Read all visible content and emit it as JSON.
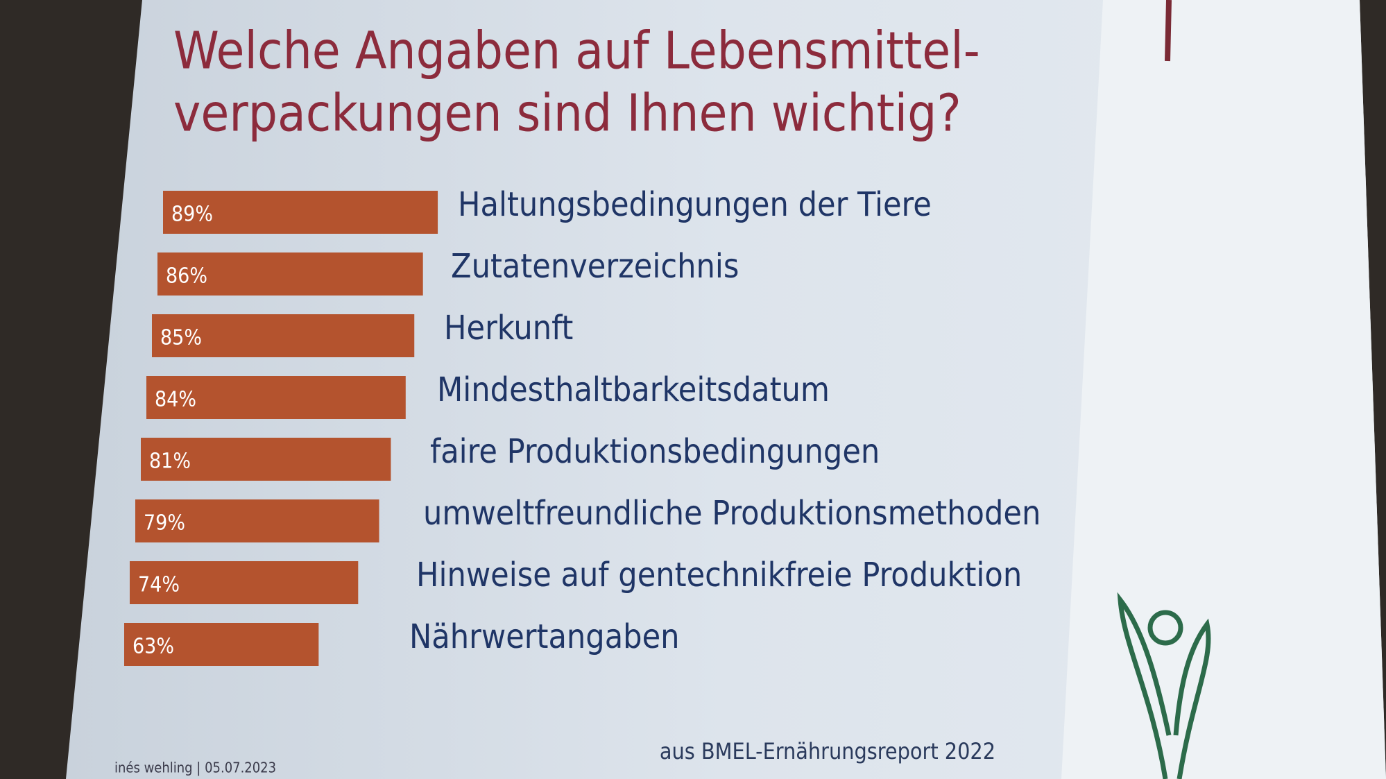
{
  "chart_data": {
    "type": "bar",
    "orientation": "horizontal",
    "title_lines": [
      "Welche Angaben auf Lebensmittel-",
      "verpackungen sind Ihnen wichtig?"
    ],
    "categories": [
      "Haltungsbedingungen der Tiere",
      "Zutatenverzeichnis",
      "Herkunft",
      "Mindesthaltbarkeitsdatum",
      "faire Produktionsbedingungen",
      "umweltfreundliche Produktionsmethoden",
      "Hinweise auf gentechnikfreie Produktion",
      "Nährwertangaben"
    ],
    "values": [
      89,
      86,
      85,
      84,
      81,
      79,
      74,
      63
    ],
    "value_labels": [
      "89%",
      "86%",
      "85%",
      "84%",
      "81%",
      "79%",
      "74%",
      "63%"
    ],
    "color": "#b4532e",
    "source": "aus BMEL-Ernährungsreport 2022",
    "footer": "inés wehling | 05.07.2023"
  }
}
